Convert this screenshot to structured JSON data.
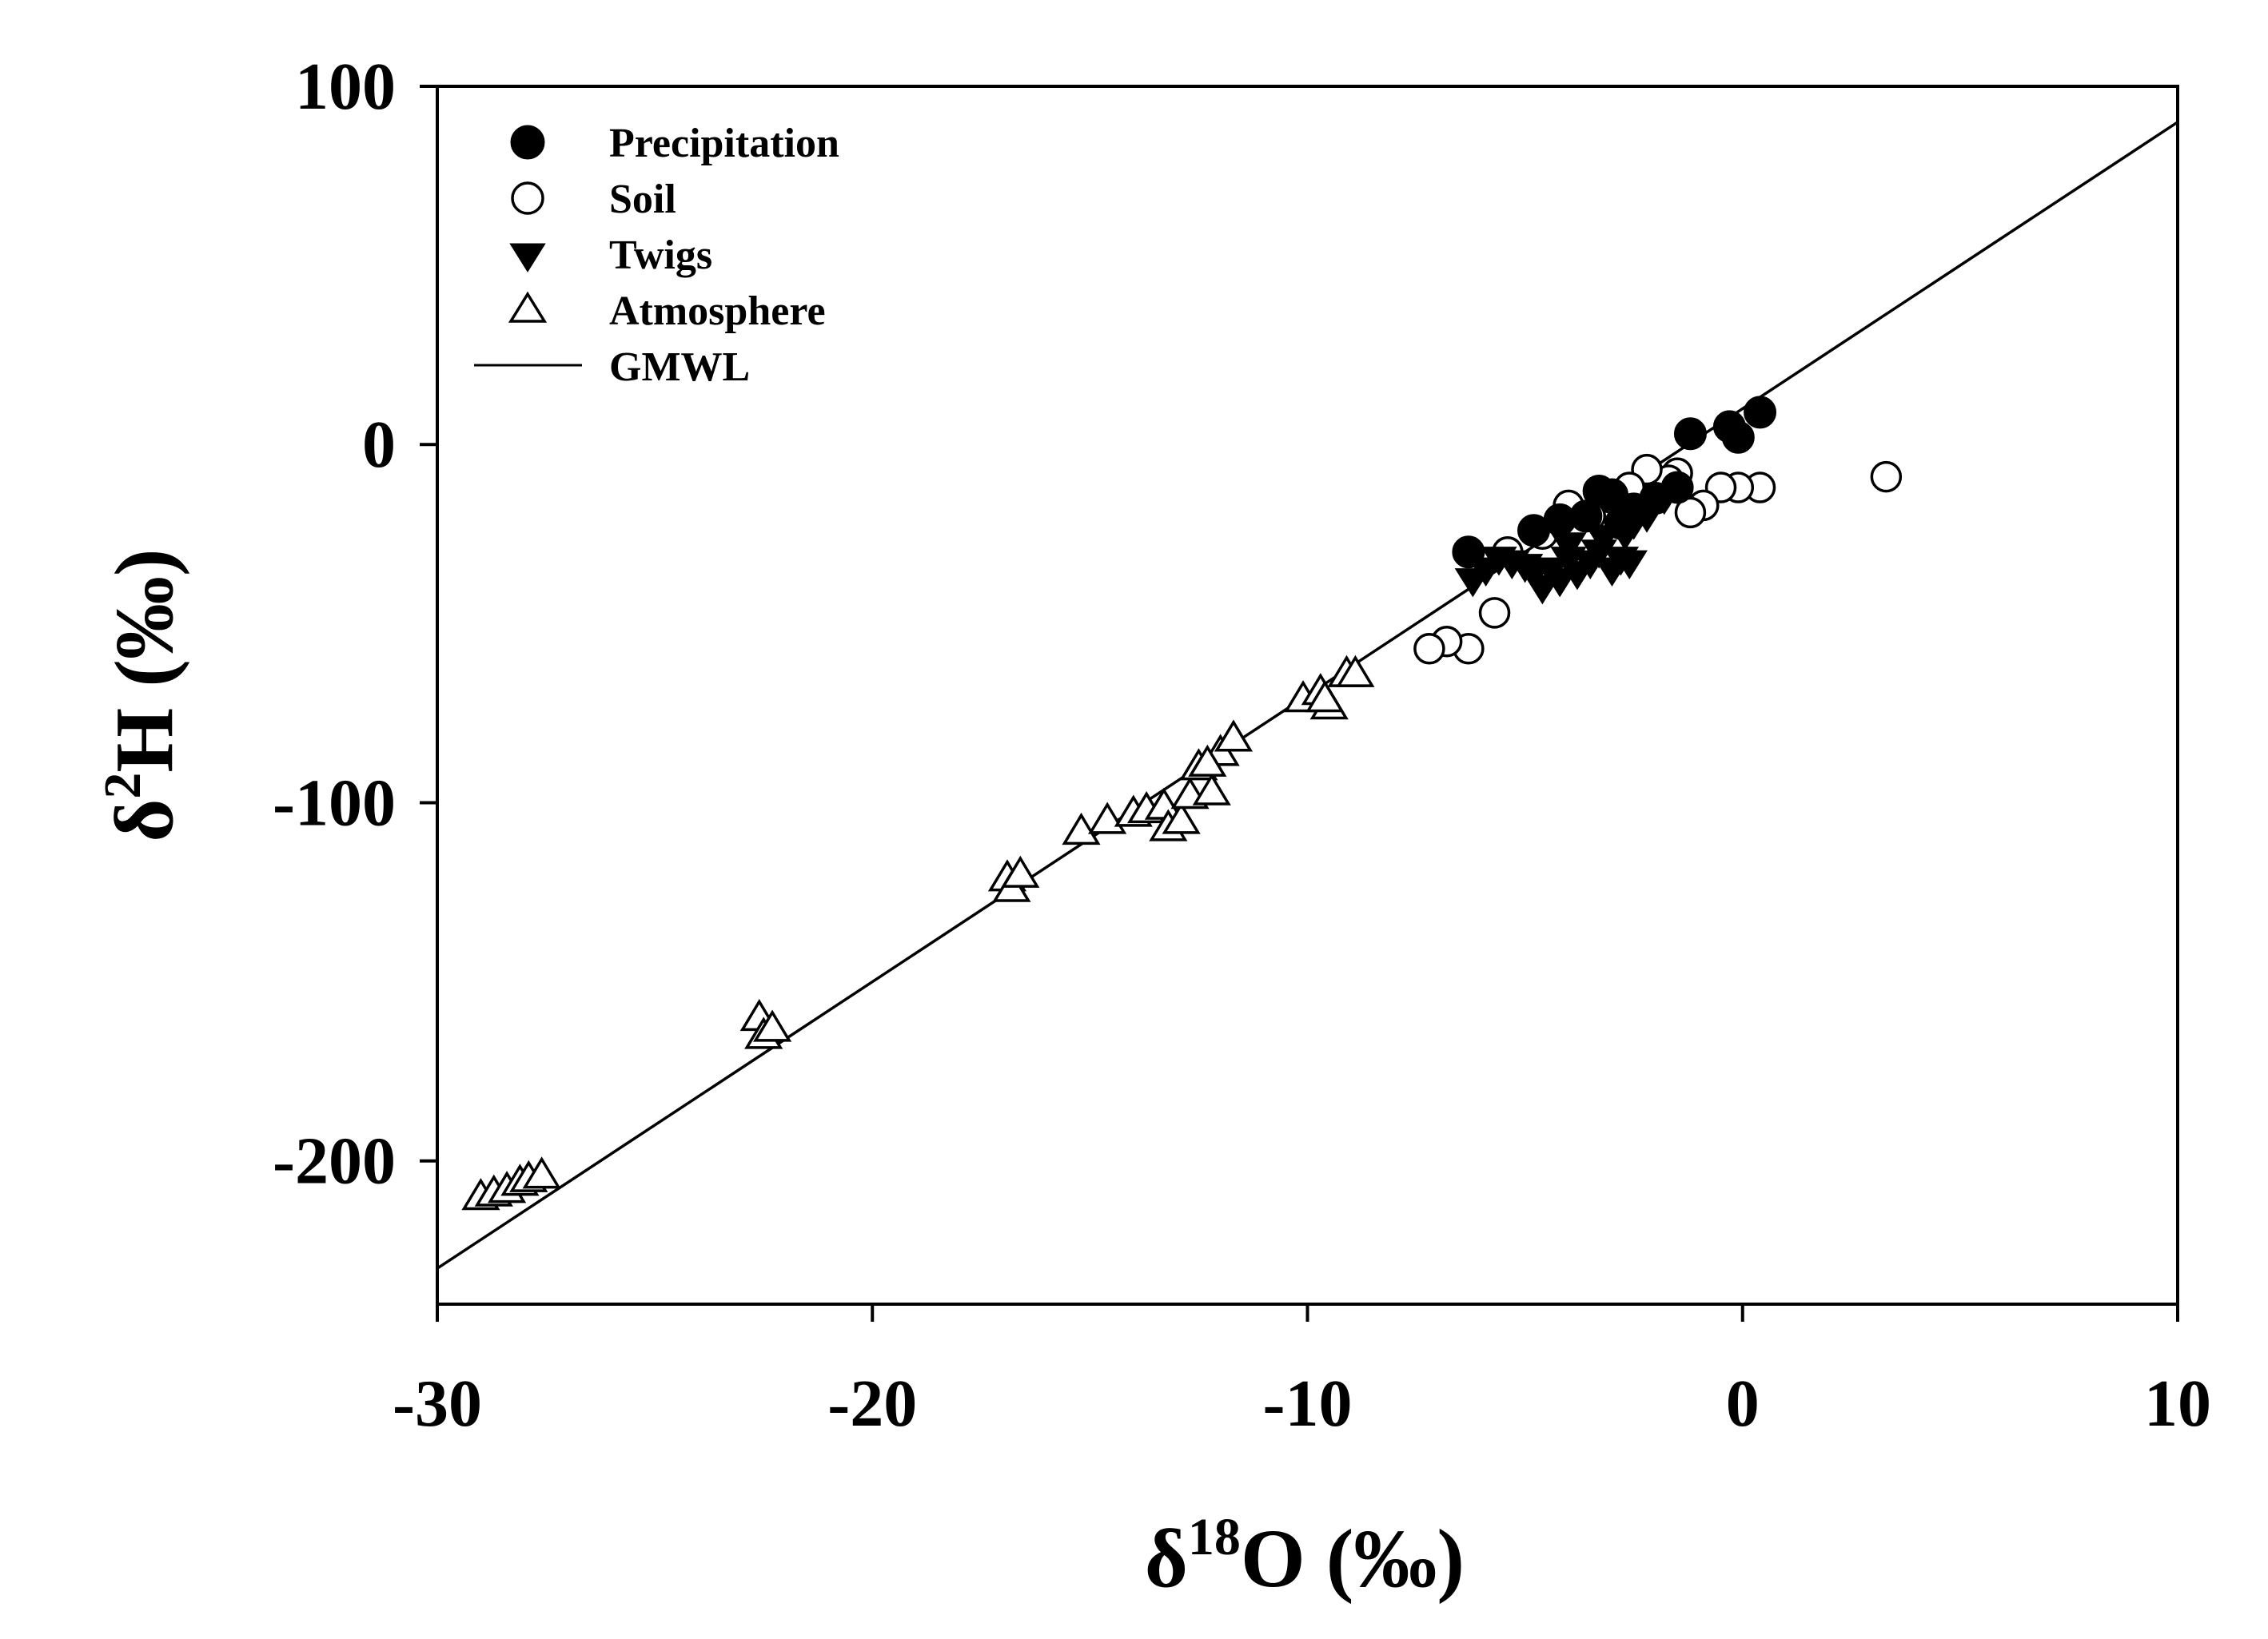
{
  "chart_data": {
    "type": "scatter",
    "title": "",
    "xlabel": {
      "prefix": "δ",
      "sup": "18",
      "suffix": "O (‰)"
    },
    "ylabel": {
      "prefix": "δ",
      "sup": "2",
      "suffix": "H (‰)"
    },
    "xlim": [
      -30,
      10
    ],
    "ylim": [
      -240,
      100
    ],
    "xticks": [
      -30,
      -20,
      -10,
      0,
      10
    ],
    "yticks": [
      -200,
      -100,
      0,
      100
    ],
    "xtick_labels": [
      "-30",
      "-20",
      "-10",
      "0",
      "10"
    ],
    "ytick_labels": [
      "-200",
      "-100",
      "0",
      "100"
    ],
    "grid": false,
    "legend_position": "top-left",
    "series": [
      {
        "name": "Precipitation",
        "marker": "filled-circle",
        "points": [
          [
            0.4,
            9
          ],
          [
            -0.3,
            5
          ],
          [
            -0.1,
            2
          ],
          [
            -1.2,
            3
          ],
          [
            -1.5,
            -12
          ],
          [
            -2.0,
            -15
          ],
          [
            -2.5,
            -18
          ],
          [
            -3.0,
            -14
          ],
          [
            -3.3,
            -13
          ],
          [
            -3.6,
            -20
          ],
          [
            -4.2,
            -21
          ],
          [
            -4.8,
            -24
          ],
          [
            -6.3,
            -30
          ],
          [
            -2.8,
            -22
          ]
        ]
      },
      {
        "name": "Soil",
        "marker": "open-circle",
        "points": [
          [
            3.3,
            -9
          ],
          [
            0.4,
            -12
          ],
          [
            -0.1,
            -12
          ],
          [
            -0.5,
            -12
          ],
          [
            -0.9,
            -17
          ],
          [
            -1.2,
            -19
          ],
          [
            -1.5,
            -8
          ],
          [
            -1.7,
            -10
          ],
          [
            -2.2,
            -7
          ],
          [
            -2.5,
            -14
          ],
          [
            -2.6,
            -12
          ],
          [
            -3.0,
            -15
          ],
          [
            -4.0,
            -17
          ],
          [
            -3.5,
            -20
          ],
          [
            -4.6,
            -25
          ],
          [
            -5.4,
            -30
          ],
          [
            -5.7,
            -47
          ],
          [
            -6.3,
            -57
          ],
          [
            -6.8,
            -55
          ],
          [
            -7.2,
            -57
          ]
        ]
      },
      {
        "name": "Twigs",
        "marker": "filled-triangle-down",
        "points": [
          [
            -1.8,
            -15
          ],
          [
            -2.2,
            -20
          ],
          [
            -2.5,
            -22
          ],
          [
            -2.7,
            -25
          ],
          [
            -2.8,
            -32
          ],
          [
            -3.0,
            -35
          ],
          [
            -3.3,
            -30
          ],
          [
            -3.5,
            -33
          ],
          [
            -3.8,
            -36
          ],
          [
            -4.0,
            -32
          ],
          [
            -4.2,
            -38
          ],
          [
            -4.4,
            -35
          ],
          [
            -4.6,
            -40
          ],
          [
            -4.8,
            -36
          ],
          [
            -5.0,
            -34
          ],
          [
            -5.3,
            -33
          ],
          [
            -5.6,
            -32
          ],
          [
            -5.9,
            -35
          ],
          [
            -6.2,
            -38
          ],
          [
            -4.0,
            -28
          ],
          [
            -3.2,
            -26
          ],
          [
            -2.6,
            -33
          ]
        ]
      },
      {
        "name": "Atmosphere",
        "marker": "open-triangle",
        "points": [
          [
            -29.0,
            -210
          ],
          [
            -28.7,
            -209
          ],
          [
            -28.4,
            -208
          ],
          [
            -28.1,
            -206
          ],
          [
            -27.9,
            -205
          ],
          [
            -27.6,
            -204
          ],
          [
            -22.6,
            -160
          ],
          [
            -22.5,
            -165
          ],
          [
            -22.3,
            -163
          ],
          [
            -16.9,
            -121
          ],
          [
            -16.8,
            -124
          ],
          [
            -16.6,
            -120
          ],
          [
            -15.2,
            -108
          ],
          [
            -14.6,
            -105
          ],
          [
            -14.0,
            -103
          ],
          [
            -13.7,
            -102
          ],
          [
            -13.3,
            -101
          ],
          [
            -13.2,
            -107
          ],
          [
            -12.9,
            -105
          ],
          [
            -12.7,
            -98
          ],
          [
            -12.5,
            -90
          ],
          [
            -12.2,
            -97
          ],
          [
            -12.0,
            -86
          ],
          [
            -11.7,
            -82
          ],
          [
            -10.1,
            -71
          ],
          [
            -9.7,
            -69
          ],
          [
            -9.5,
            -73
          ],
          [
            -9.1,
            -64
          ],
          [
            -8.9,
            -64
          ],
          [
            -12.3,
            -89
          ],
          [
            -9.6,
            -71
          ]
        ]
      }
    ],
    "lines": [
      {
        "name": "GMWL",
        "slope": 8,
        "intercept": 10,
        "x_range": [
          -30,
          10
        ]
      }
    ]
  }
}
